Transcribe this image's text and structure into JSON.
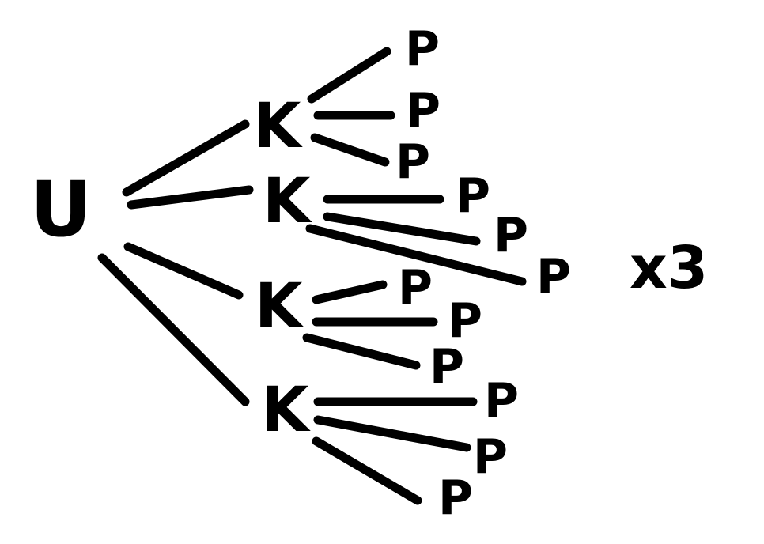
{
  "diagram": {
    "root": {
      "label": "U"
    },
    "multiplier": "x3",
    "branches": [
      {
        "label": "K",
        "leaves": [
          {
            "label": "P"
          },
          {
            "label": "P"
          },
          {
            "label": "P"
          }
        ]
      },
      {
        "label": "K",
        "leaves": [
          {
            "label": "P"
          },
          {
            "label": "P"
          },
          {
            "label": "P"
          }
        ]
      },
      {
        "label": "K",
        "leaves": [
          {
            "label": "P"
          },
          {
            "label": "P"
          },
          {
            "label": "P"
          }
        ]
      },
      {
        "label": "K",
        "leaves": [
          {
            "label": "P"
          },
          {
            "label": "P"
          },
          {
            "label": "P"
          }
        ]
      }
    ],
    "colors": {
      "ink": "#000000",
      "background": "#ffffff"
    }
  }
}
